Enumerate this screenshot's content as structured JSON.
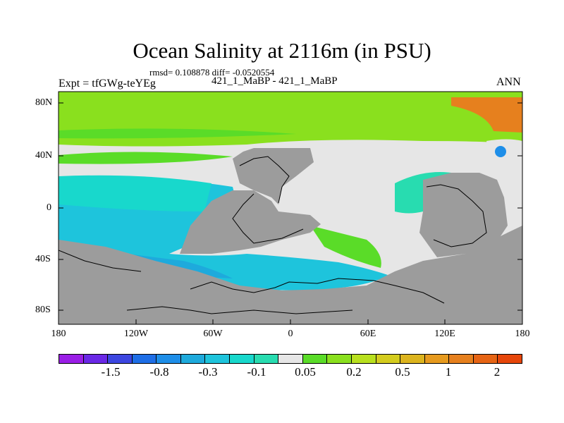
{
  "plot": {
    "title": "Ocean Salinity at 2116m (in PSU)",
    "stats": "rmsd= 0.108878 diff= -0.0520554",
    "subtitle": "421_1_MaBP - 421_1_MaBP",
    "expt": "Expt = tfGWg-teYEg",
    "season": "ANN"
  },
  "axes": {
    "lat_labels": [
      "80N",
      "40N",
      "0",
      "40S",
      "80S"
    ],
    "lon_labels": [
      "180",
      "120W",
      "60W",
      "0",
      "60E",
      "120E",
      "180"
    ]
  },
  "colorbar": {
    "colors": [
      "#9a1ee6",
      "#6a28e6",
      "#3c46e0",
      "#1e6ee6",
      "#1e8ee8",
      "#1eaadc",
      "#1ec4dc",
      "#18d8cc",
      "#28dcb0",
      "#e6e6e6",
      "#5adc28",
      "#8ae01e",
      "#b8e01e",
      "#d4cc1e",
      "#dcb41e",
      "#e69a1e",
      "#e6801e",
      "#e66414",
      "#e6460a"
    ],
    "labels": [
      "-1.5",
      "-0.8",
      "-0.3",
      "-0.1",
      "0.05",
      "0.2",
      "0.5",
      "1",
      "2"
    ]
  }
}
